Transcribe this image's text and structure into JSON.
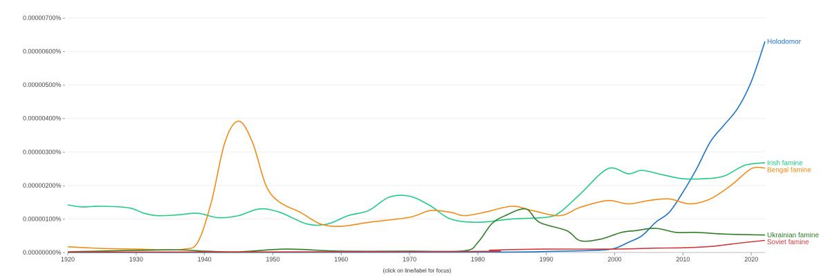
{
  "chart_data": {
    "type": "line",
    "title": "",
    "xlabel": "",
    "ylabel": "",
    "xlim": [
      1920,
      2022
    ],
    "ylim": [
      0,
      7
    ],
    "y_unit_suffix": "%",
    "y_scale_note": "values in units of 0.000001%",
    "y_ticks": [
      {
        "value": 0,
        "label": "0.00000000% -"
      },
      {
        "value": 1,
        "label": "0.00000100% -"
      },
      {
        "value": 2,
        "label": "0.00000200% -"
      },
      {
        "value": 3,
        "label": "0.00000300% -"
      },
      {
        "value": 4,
        "label": "0.00000400% -"
      },
      {
        "value": 5,
        "label": "0.00000500% -"
      },
      {
        "value": 6,
        "label": "0.00000600% -"
      },
      {
        "value": 7,
        "label": "0.00000700% -"
      }
    ],
    "x_ticks": [
      1920,
      1930,
      1940,
      1950,
      1960,
      1970,
      1980,
      1990,
      2000,
      2010,
      2020
    ],
    "grid": true,
    "legend": "labels at line ends (right)",
    "series": [
      {
        "name": "Holodomor",
        "color": "#1a73c8",
        "points": [
          [
            1920,
            0
          ],
          [
            1980,
            0.01
          ],
          [
            1990,
            0.03
          ],
          [
            1995,
            0.05
          ],
          [
            1998,
            0.07
          ],
          [
            2000,
            0.12
          ],
          [
            2002,
            0.3
          ],
          [
            2004,
            0.5
          ],
          [
            2006,
            0.9
          ],
          [
            2008,
            1.2
          ],
          [
            2010,
            1.8
          ],
          [
            2012,
            2.5
          ],
          [
            2014,
            3.3
          ],
          [
            2016,
            3.8
          ],
          [
            2018,
            4.3
          ],
          [
            2020,
            5.1
          ],
          [
            2022,
            6.3
          ]
        ]
      },
      {
        "name": "Irish famine",
        "color": "#1fcc85",
        "points": [
          [
            1920,
            1.42
          ],
          [
            1922,
            1.36
          ],
          [
            1925,
            1.38
          ],
          [
            1929,
            1.33
          ],
          [
            1931,
            1.18
          ],
          [
            1933,
            1.1
          ],
          [
            1936,
            1.12
          ],
          [
            1939,
            1.17
          ],
          [
            1942,
            1.04
          ],
          [
            1945,
            1.1
          ],
          [
            1948,
            1.3
          ],
          [
            1951,
            1.2
          ],
          [
            1955,
            0.85
          ],
          [
            1958,
            0.85
          ],
          [
            1961,
            1.1
          ],
          [
            1964,
            1.25
          ],
          [
            1967,
            1.65
          ],
          [
            1970,
            1.68
          ],
          [
            1973,
            1.4
          ],
          [
            1976,
            1.0
          ],
          [
            1980,
            0.9
          ],
          [
            1985,
            1.0
          ],
          [
            1990,
            1.05
          ],
          [
            1992,
            1.2
          ],
          [
            1995,
            1.75
          ],
          [
            1999,
            2.5
          ],
          [
            2002,
            2.35
          ],
          [
            2004,
            2.45
          ],
          [
            2007,
            2.32
          ],
          [
            2010,
            2.2
          ],
          [
            2013,
            2.2
          ],
          [
            2016,
            2.28
          ],
          [
            2019,
            2.6
          ],
          [
            2022,
            2.68
          ]
        ]
      },
      {
        "name": "Bengal famine",
        "color": "#f28a14",
        "points": [
          [
            1920,
            0.17
          ],
          [
            1925,
            0.12
          ],
          [
            1930,
            0.1
          ],
          [
            1934,
            0.08
          ],
          [
            1937,
            0.1
          ],
          [
            1939,
            0.3
          ],
          [
            1941,
            1.5
          ],
          [
            1943,
            3.3
          ],
          [
            1945,
            3.92
          ],
          [
            1947,
            3.3
          ],
          [
            1949,
            2.0
          ],
          [
            1951,
            1.5
          ],
          [
            1954,
            1.2
          ],
          [
            1957,
            0.85
          ],
          [
            1960,
            0.78
          ],
          [
            1964,
            0.9
          ],
          [
            1970,
            1.05
          ],
          [
            1973,
            1.25
          ],
          [
            1976,
            1.2
          ],
          [
            1978,
            1.1
          ],
          [
            1981,
            1.2
          ],
          [
            1985,
            1.38
          ],
          [
            1988,
            1.25
          ],
          [
            1992,
            1.1
          ],
          [
            1995,
            1.35
          ],
          [
            1999,
            1.55
          ],
          [
            2002,
            1.45
          ],
          [
            2005,
            1.55
          ],
          [
            2008,
            1.6
          ],
          [
            2011,
            1.45
          ],
          [
            2014,
            1.6
          ],
          [
            2017,
            2.0
          ],
          [
            2020,
            2.5
          ],
          [
            2022,
            2.52
          ]
        ]
      },
      {
        "name": "Ukrainian famine",
        "color": "#2d7d24",
        "points": [
          [
            1920,
            0.02
          ],
          [
            1935,
            0.08
          ],
          [
            1940,
            0.04
          ],
          [
            1945,
            0.02
          ],
          [
            1952,
            0.1
          ],
          [
            1960,
            0.04
          ],
          [
            1970,
            0.04
          ],
          [
            1978,
            0.05
          ],
          [
            1980,
            0.3
          ],
          [
            1982,
            0.85
          ],
          [
            1984,
            1.1
          ],
          [
            1987,
            1.3
          ],
          [
            1989,
            0.9
          ],
          [
            1993,
            0.65
          ],
          [
            1995,
            0.35
          ],
          [
            1998,
            0.4
          ],
          [
            2001,
            0.6
          ],
          [
            2003,
            0.65
          ],
          [
            2006,
            0.72
          ],
          [
            2009,
            0.6
          ],
          [
            2012,
            0.6
          ],
          [
            2016,
            0.55
          ],
          [
            2022,
            0.52
          ]
        ]
      },
      {
        "name": "Soviet famine",
        "color": "#d23a3a",
        "points": [
          [
            1920,
            0.01
          ],
          [
            1978,
            0.03
          ],
          [
            1982,
            0.07
          ],
          [
            1990,
            0.1
          ],
          [
            2000,
            0.1
          ],
          [
            2006,
            0.13
          ],
          [
            2010,
            0.14
          ],
          [
            2014,
            0.18
          ],
          [
            2017,
            0.25
          ],
          [
            2020,
            0.32
          ],
          [
            2022,
            0.36
          ]
        ]
      }
    ],
    "footnote": "(click on line/label for focus)"
  }
}
